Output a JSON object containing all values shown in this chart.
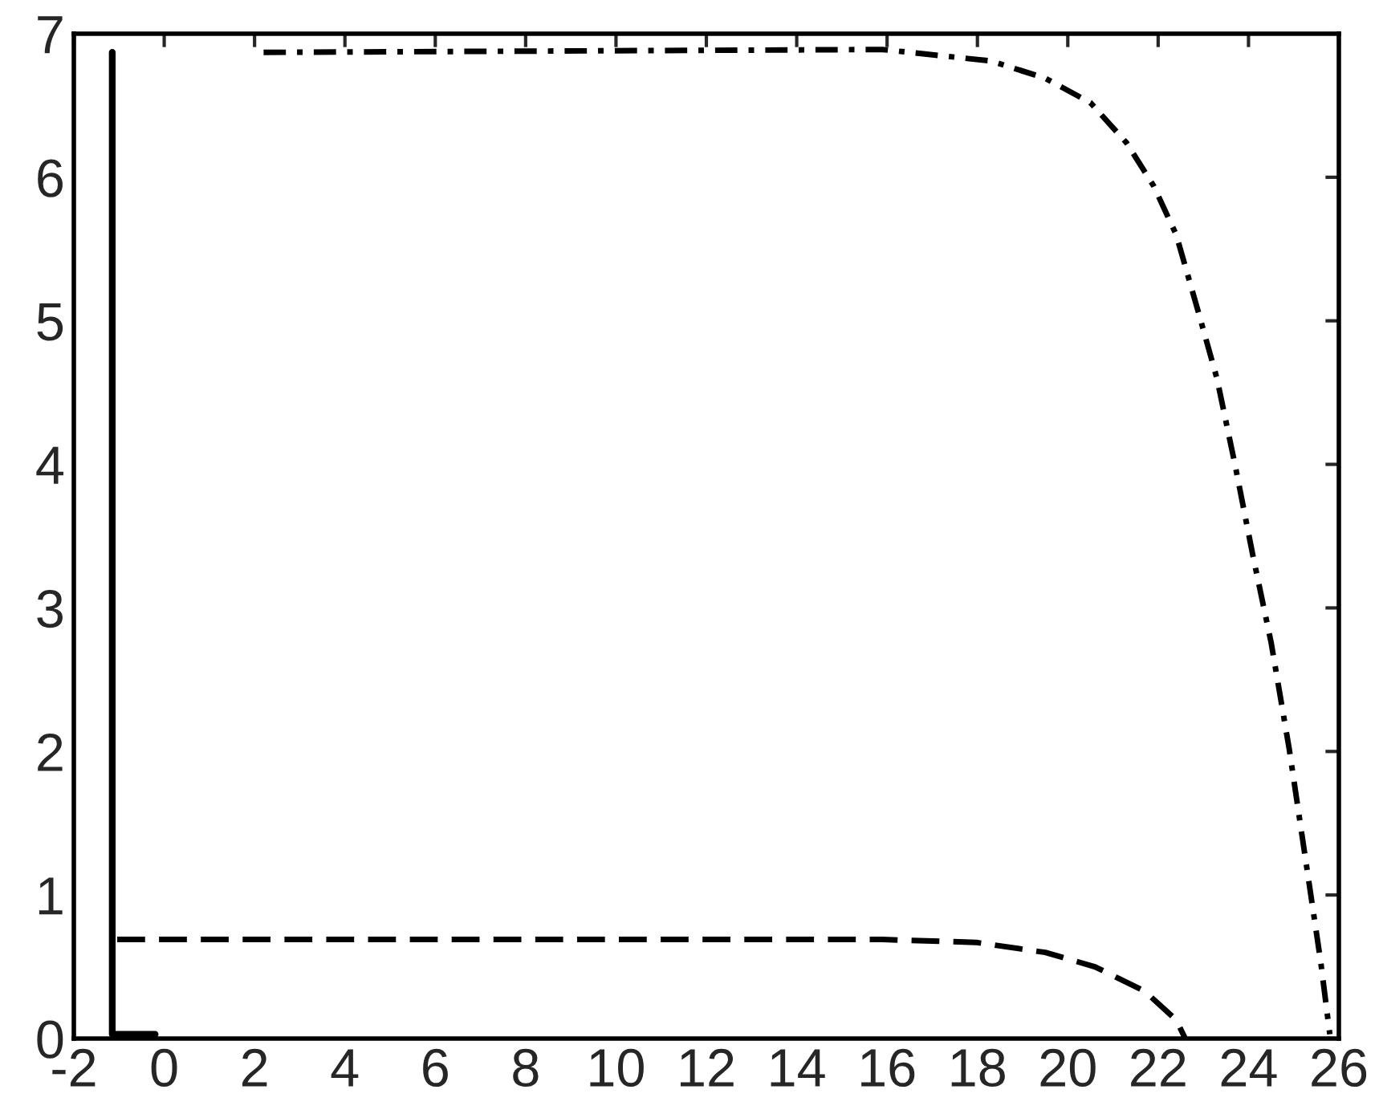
{
  "chart_data": {
    "type": "line",
    "series": [
      {
        "color": "#000000",
        "line_style": "solid",
        "x": [
          -0.2,
          -1.15,
          -1.15
        ],
        "values": [
          0.03,
          0.03,
          6.87
        ]
      },
      {
        "color": "#000000",
        "line_style": "dashed",
        "x": [
          -1.04,
          15.9,
          17.97,
          19.5,
          20.6,
          21.7,
          22.4,
          22.6
        ],
        "values": [
          0.69,
          0.69,
          0.67,
          0.6,
          0.5,
          0.33,
          0.13,
          0.0
        ]
      },
      {
        "color": "#000000",
        "line_style": "dashdot",
        "x": [
          2.2,
          15.9,
          18.3,
          19.5,
          20.5,
          21.3,
          21.9,
          22.4,
          22.9,
          23.3,
          23.7,
          24.1,
          24.5,
          24.9,
          25.3,
          25.6,
          25.8
        ],
        "values": [
          6.87,
          6.89,
          6.81,
          6.69,
          6.52,
          6.24,
          5.94,
          5.6,
          5.05,
          4.6,
          4.0,
          3.36,
          2.76,
          2.02,
          1.17,
          0.53,
          0.03
        ]
      }
    ],
    "xlim": [
      -2,
      26
    ],
    "ylim": [
      0,
      7
    ],
    "xticks": [
      -2,
      0,
      2,
      4,
      6,
      8,
      10,
      12,
      14,
      16,
      18,
      20,
      22,
      24,
      26
    ],
    "yticks": [
      0,
      1,
      2,
      3,
      4,
      5,
      6,
      7
    ],
    "grid": false,
    "marker": "none"
  }
}
